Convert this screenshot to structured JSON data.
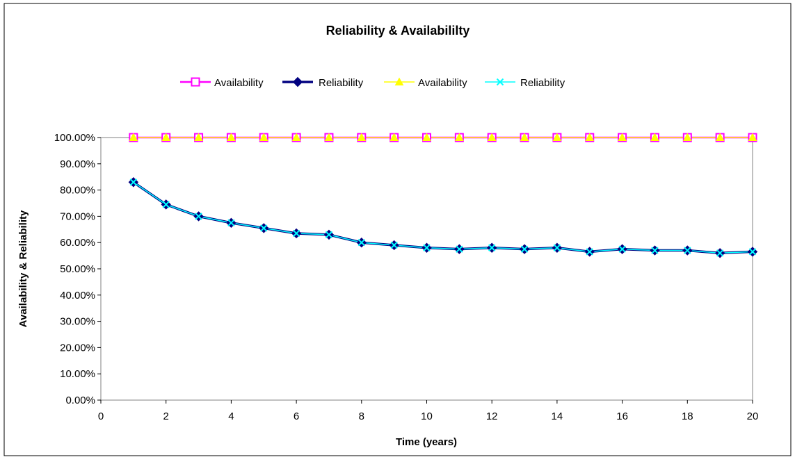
{
  "chart_data": {
    "type": "line",
    "title": "Reliability & Availabililty",
    "xlabel": "Time (years)",
    "ylabel": "Availability & Reliability",
    "xlim": [
      0,
      20
    ],
    "ylim": [
      0,
      100
    ],
    "x_ticks": [
      "0",
      "2",
      "4",
      "6",
      "8",
      "10",
      "12",
      "14",
      "16",
      "18",
      "20"
    ],
    "y_ticks": [
      "0.00%",
      "10.00%",
      "20.00%",
      "30.00%",
      "40.00%",
      "50.00%",
      "60.00%",
      "70.00%",
      "80.00%",
      "90.00%",
      "100.00%"
    ],
    "legend_position": "top",
    "grid": false,
    "x": [
      1,
      2,
      3,
      4,
      5,
      6,
      7,
      8,
      9,
      10,
      11,
      12,
      13,
      14,
      15,
      16,
      17,
      18,
      19,
      20
    ],
    "series": [
      {
        "name": "Availability",
        "color": "#ff00ff",
        "marker": "square",
        "values": [
          100,
          100,
          100,
          100,
          100,
          100,
          100,
          100,
          100,
          100,
          100,
          100,
          100,
          100,
          100,
          100,
          100,
          100,
          100,
          100
        ]
      },
      {
        "name": "Reliability",
        "color": "#000080",
        "marker": "diamond",
        "values": [
          83,
          74.5,
          70,
          67.5,
          65.5,
          63.5,
          63,
          60,
          59,
          58,
          57.5,
          58,
          57.5,
          58,
          56.5,
          57.5,
          57,
          57,
          56,
          56.5
        ]
      },
      {
        "name": "Availability",
        "color": "#ffff00",
        "marker": "triangle",
        "values": [
          100,
          100,
          100,
          100,
          100,
          100,
          100,
          100,
          100,
          100,
          100,
          100,
          100,
          100,
          100,
          100,
          100,
          100,
          100,
          100
        ]
      },
      {
        "name": "Reliability",
        "color": "#00ffff",
        "marker": "x",
        "values": [
          83,
          74.5,
          70,
          67.5,
          65.5,
          63.5,
          63,
          60,
          59,
          58,
          57.5,
          58,
          57.5,
          58,
          56.5,
          57.5,
          57,
          57,
          56,
          56.5
        ]
      }
    ]
  }
}
